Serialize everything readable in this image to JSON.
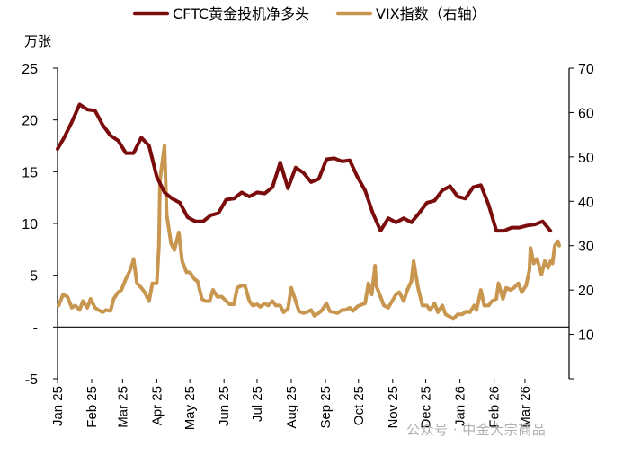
{
  "chart_data": {
    "type": "line",
    "title": "",
    "y_unit_label": "万张",
    "left_axis": {
      "min": -5,
      "max": 25,
      "step": 5,
      "tick_labels": [
        "-5",
        "-",
        "5",
        "10",
        "15",
        "20",
        "25"
      ]
    },
    "right_axis": {
      "min": 0,
      "max": 70,
      "step": 10,
      "tick_labels": [
        "10",
        "20",
        "30",
        "40",
        "50",
        "60",
        "70"
      ]
    },
    "x_axis": {
      "start": "2025-01-01",
      "end": "2026-04-10",
      "tick_labels": [
        "Jan 25",
        "Feb 25",
        "Mar 25",
        "Apr 25",
        "May 25",
        "Jun 25",
        "Jul 25",
        "Aug 25",
        "Sep 25",
        "Oct 25",
        "Nov 25",
        "Dec 25",
        "Jan 26",
        "Feb 26",
        "Mar 26"
      ]
    },
    "colors": {
      "cftc": "#7a0c0c",
      "vix": "#c8964f",
      "axis": "#000000"
    },
    "series": [
      {
        "name": "CFTC黄金投机净多头",
        "axis": "left",
        "points": [
          [
            "2025-01-01",
            17.2
          ],
          [
            "2025-01-07",
            18.3
          ],
          [
            "2025-01-14",
            19.8
          ],
          [
            "2025-01-21",
            21.5
          ],
          [
            "2025-01-28",
            21.0
          ],
          [
            "2025-02-04",
            20.9
          ],
          [
            "2025-02-11",
            19.5
          ],
          [
            "2025-02-18",
            18.5
          ],
          [
            "2025-02-25",
            18.0
          ],
          [
            "2025-03-04",
            16.8
          ],
          [
            "2025-03-11",
            16.8
          ],
          [
            "2025-03-18",
            18.3
          ],
          [
            "2025-03-25",
            17.5
          ],
          [
            "2025-04-01",
            14.5
          ],
          [
            "2025-04-08",
            13.0
          ],
          [
            "2025-04-15",
            12.4
          ],
          [
            "2025-04-22",
            12.0
          ],
          [
            "2025-04-29",
            10.6
          ],
          [
            "2025-05-06",
            10.2
          ],
          [
            "2025-05-13",
            10.2
          ],
          [
            "2025-05-20",
            10.8
          ],
          [
            "2025-05-27",
            11.0
          ],
          [
            "2025-06-03",
            12.3
          ],
          [
            "2025-06-10",
            12.4
          ],
          [
            "2025-06-17",
            13.0
          ],
          [
            "2025-06-24",
            12.6
          ],
          [
            "2025-07-01",
            13.0
          ],
          [
            "2025-07-08",
            12.9
          ],
          [
            "2025-07-15",
            13.5
          ],
          [
            "2025-07-22",
            15.9
          ],
          [
            "2025-07-29",
            13.4
          ],
          [
            "2025-08-05",
            15.4
          ],
          [
            "2025-08-12",
            14.9
          ],
          [
            "2025-08-19",
            14.0
          ],
          [
            "2025-08-26",
            14.3
          ],
          [
            "2025-09-02",
            16.2
          ],
          [
            "2025-09-09",
            16.3
          ],
          [
            "2025-09-16",
            16.0
          ],
          [
            "2025-09-23",
            16.1
          ],
          [
            "2025-09-30",
            14.5
          ],
          [
            "2025-10-07",
            13.2
          ],
          [
            "2025-10-14",
            11.0
          ],
          [
            "2025-10-21",
            9.3
          ],
          [
            "2025-10-28",
            10.5
          ],
          [
            "2025-11-04",
            10.1
          ],
          [
            "2025-11-11",
            10.5
          ],
          [
            "2025-11-18",
            10.1
          ],
          [
            "2025-11-25",
            11.0
          ],
          [
            "2025-12-02",
            12.0
          ],
          [
            "2025-12-09",
            12.2
          ],
          [
            "2025-12-16",
            13.2
          ],
          [
            "2025-12-23",
            13.6
          ],
          [
            "2025-12-30",
            12.6
          ],
          [
            "2026-01-06",
            12.4
          ],
          [
            "2026-01-13",
            13.5
          ],
          [
            "2026-01-20",
            13.7
          ],
          [
            "2026-01-27",
            11.8
          ],
          [
            "2026-02-03",
            9.3
          ],
          [
            "2026-02-10",
            9.3
          ],
          [
            "2026-02-17",
            9.6
          ],
          [
            "2026-02-24",
            9.6
          ],
          [
            "2026-03-03",
            9.8
          ],
          [
            "2026-03-10",
            9.9
          ],
          [
            "2026-03-17",
            10.2
          ],
          [
            "2026-03-24",
            9.3
          ]
        ]
      },
      {
        "name": "VIX指数（右轴）",
        "axis": "right",
        "points": [
          [
            "2025-01-02",
            16.5
          ],
          [
            "2025-01-06",
            19.0
          ],
          [
            "2025-01-10",
            18.5
          ],
          [
            "2025-01-14",
            16.0
          ],
          [
            "2025-01-17",
            16.5
          ],
          [
            "2025-01-21",
            15.5
          ],
          [
            "2025-01-24",
            17.5
          ],
          [
            "2025-01-28",
            16.0
          ],
          [
            "2025-01-31",
            18.0
          ],
          [
            "2025-02-04",
            16.0
          ],
          [
            "2025-02-07",
            15.5
          ],
          [
            "2025-02-11",
            15.0
          ],
          [
            "2025-02-14",
            15.5
          ],
          [
            "2025-02-18",
            15.3
          ],
          [
            "2025-02-21",
            18.0
          ],
          [
            "2025-02-25",
            19.5
          ],
          [
            "2025-02-28",
            20.0
          ],
          [
            "2025-03-04",
            22.5
          ],
          [
            "2025-03-07",
            24.0
          ],
          [
            "2025-03-10",
            26.0
          ],
          [
            "2025-03-11",
            27.0
          ],
          [
            "2025-03-14",
            21.5
          ],
          [
            "2025-03-18",
            20.5
          ],
          [
            "2025-03-21",
            19.5
          ],
          [
            "2025-03-25",
            17.5
          ],
          [
            "2025-03-28",
            21.5
          ],
          [
            "2025-04-01",
            21.5
          ],
          [
            "2025-04-03",
            30.0
          ],
          [
            "2025-04-04",
            45.0
          ],
          [
            "2025-04-08",
            52.5
          ],
          [
            "2025-04-10",
            37.0
          ],
          [
            "2025-04-14",
            30.5
          ],
          [
            "2025-04-17",
            29.0
          ],
          [
            "2025-04-21",
            33.0
          ],
          [
            "2025-04-24",
            26.5
          ],
          [
            "2025-04-28",
            24.0
          ],
          [
            "2025-05-01",
            24.0
          ],
          [
            "2025-05-05",
            22.5
          ],
          [
            "2025-05-08",
            22.0
          ],
          [
            "2025-05-12",
            18.0
          ],
          [
            "2025-05-15",
            17.5
          ],
          [
            "2025-05-19",
            17.5
          ],
          [
            "2025-05-22",
            20.0
          ],
          [
            "2025-05-26",
            18.5
          ],
          [
            "2025-05-30",
            18.5
          ],
          [
            "2025-06-03",
            17.5
          ],
          [
            "2025-06-06",
            16.8
          ],
          [
            "2025-06-10",
            16.8
          ],
          [
            "2025-06-13",
            20.5
          ],
          [
            "2025-06-17",
            21.0
          ],
          [
            "2025-06-20",
            21.0
          ],
          [
            "2025-06-24",
            17.5
          ],
          [
            "2025-06-27",
            16.5
          ],
          [
            "2025-07-01",
            16.8
          ],
          [
            "2025-07-04",
            16.2
          ],
          [
            "2025-07-08",
            17.0
          ],
          [
            "2025-07-11",
            16.5
          ],
          [
            "2025-07-15",
            17.5
          ],
          [
            "2025-07-18",
            16.5
          ],
          [
            "2025-07-22",
            16.5
          ],
          [
            "2025-07-25",
            15.0
          ],
          [
            "2025-07-29",
            15.8
          ],
          [
            "2025-08-01",
            20.5
          ],
          [
            "2025-08-05",
            17.5
          ],
          [
            "2025-08-08",
            15.2
          ],
          [
            "2025-08-12",
            14.8
          ],
          [
            "2025-08-15",
            15.0
          ],
          [
            "2025-08-19",
            15.5
          ],
          [
            "2025-08-22",
            14.2
          ],
          [
            "2025-08-26",
            14.8
          ],
          [
            "2025-08-29",
            15.5
          ],
          [
            "2025-09-02",
            17.0
          ],
          [
            "2025-09-05",
            15.2
          ],
          [
            "2025-09-09",
            15.0
          ],
          [
            "2025-09-12",
            14.8
          ],
          [
            "2025-09-16",
            15.5
          ],
          [
            "2025-09-19",
            15.5
          ],
          [
            "2025-09-23",
            16.0
          ],
          [
            "2025-09-26",
            15.3
          ],
          [
            "2025-09-30",
            16.3
          ],
          [
            "2025-10-03",
            16.6
          ],
          [
            "2025-10-07",
            17.0
          ],
          [
            "2025-10-10",
            21.5
          ],
          [
            "2025-10-13",
            19.0
          ],
          [
            "2025-10-16",
            25.5
          ],
          [
            "2025-10-17",
            21.0
          ],
          [
            "2025-10-21",
            18.5
          ],
          [
            "2025-10-24",
            16.5
          ],
          [
            "2025-10-28",
            16.0
          ],
          [
            "2025-10-31",
            17.3
          ],
          [
            "2025-11-04",
            19.0
          ],
          [
            "2025-11-07",
            19.5
          ],
          [
            "2025-11-11",
            17.5
          ],
          [
            "2025-11-14",
            19.8
          ],
          [
            "2025-11-18",
            22.0
          ],
          [
            "2025-11-20",
            26.5
          ],
          [
            "2025-11-24",
            20.5
          ],
          [
            "2025-11-28",
            16.5
          ],
          [
            "2025-12-02",
            16.5
          ],
          [
            "2025-12-05",
            15.5
          ],
          [
            "2025-12-09",
            17.0
          ],
          [
            "2025-12-12",
            15.0
          ],
          [
            "2025-12-16",
            16.5
          ],
          [
            "2025-12-19",
            14.5
          ],
          [
            "2025-12-23",
            14.0
          ],
          [
            "2025-12-26",
            13.5
          ],
          [
            "2025-12-30",
            14.5
          ],
          [
            "2026-01-03",
            14.5
          ],
          [
            "2026-01-07",
            15.2
          ],
          [
            "2026-01-10",
            15.0
          ],
          [
            "2026-01-14",
            16.5
          ],
          [
            "2026-01-16",
            15.5
          ],
          [
            "2026-01-20",
            20.0
          ],
          [
            "2026-01-23",
            16.5
          ],
          [
            "2026-01-27",
            16.5
          ],
          [
            "2026-01-30",
            17.5
          ],
          [
            "2026-02-03",
            18.0
          ],
          [
            "2026-02-05",
            21.5
          ],
          [
            "2026-02-09",
            18.0
          ],
          [
            "2026-02-12",
            20.5
          ],
          [
            "2026-02-16",
            20.0
          ],
          [
            "2026-02-19",
            20.5
          ],
          [
            "2026-02-23",
            21.5
          ],
          [
            "2026-02-26",
            19.5
          ],
          [
            "2026-03-02",
            21.0
          ],
          [
            "2026-03-05",
            24.5
          ],
          [
            "2026-03-06",
            29.5
          ],
          [
            "2026-03-09",
            26.0
          ],
          [
            "2026-03-12",
            27.0
          ],
          [
            "2026-03-16",
            23.5
          ],
          [
            "2026-03-19",
            26.5
          ],
          [
            "2026-03-22",
            25.0
          ],
          [
            "2026-03-24",
            26.5
          ],
          [
            "2026-03-26",
            26.0
          ],
          [
            "2026-03-28",
            30.0
          ],
          [
            "2026-03-31",
            31.0
          ],
          [
            "2026-04-01",
            30.0
          ]
        ]
      }
    ]
  },
  "watermark": "公众号 · 中金大宗商品"
}
